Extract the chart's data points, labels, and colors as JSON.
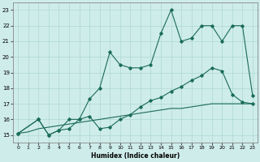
{
  "xlabel": "Humidex (Indice chaleur)",
  "xlim": [
    -0.5,
    23.5
  ],
  "ylim": [
    14.5,
    23.5
  ],
  "xticks": [
    0,
    1,
    2,
    3,
    4,
    5,
    6,
    7,
    8,
    9,
    10,
    11,
    12,
    13,
    14,
    15,
    16,
    17,
    18,
    19,
    20,
    21,
    22,
    23
  ],
  "yticks": [
    15,
    16,
    17,
    18,
    19,
    20,
    21,
    22,
    23
  ],
  "bg_color": "#ceecea",
  "grid_color": "#aed8d4",
  "line_color": "#1a6b5a",
  "series1_x": [
    0,
    1,
    2,
    3,
    4,
    5,
    6,
    7,
    8,
    9,
    10,
    11,
    12,
    13,
    14,
    15,
    16,
    17,
    18,
    19,
    20,
    21,
    22,
    23
  ],
  "series1_y": [
    15.1,
    15.2,
    15.4,
    15.5,
    15.6,
    15.7,
    15.8,
    15.9,
    16.0,
    16.1,
    16.2,
    16.3,
    16.4,
    16.5,
    16.6,
    16.7,
    16.7,
    16.8,
    16.9,
    17.0,
    17.0,
    17.0,
    17.0,
    17.0
  ],
  "series2_x": [
    0,
    2,
    3,
    4,
    5,
    6,
    7,
    8,
    9,
    10,
    11,
    12,
    13,
    14,
    15,
    16,
    17,
    18,
    19,
    20,
    21,
    22,
    23
  ],
  "series2_y": [
    15.1,
    16.0,
    15.0,
    15.3,
    15.4,
    16.0,
    16.2,
    15.4,
    15.5,
    16.0,
    16.3,
    16.8,
    17.2,
    17.4,
    17.8,
    18.1,
    18.5,
    18.8,
    19.3,
    19.1,
    17.6,
    17.1,
    17.0
  ],
  "series3_x": [
    0,
    2,
    3,
    4,
    5,
    6,
    7,
    8,
    9,
    10,
    11,
    12,
    13,
    14,
    15,
    16,
    17,
    18,
    19,
    20,
    21,
    22,
    23
  ],
  "series3_y": [
    15.1,
    16.0,
    15.0,
    15.3,
    16.0,
    16.0,
    17.3,
    18.0,
    20.3,
    19.5,
    19.3,
    19.3,
    19.5,
    21.5,
    23.0,
    21.0,
    21.2,
    22.0,
    22.0,
    21.0,
    22.0,
    22.0,
    17.5
  ]
}
